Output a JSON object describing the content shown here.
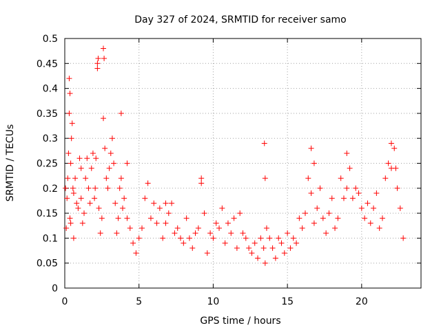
{
  "chart_data": {
    "type": "scatter",
    "title": "Day 327 of 2024, SRMTID for receiver samo",
    "xlabel": "GPS time / hours",
    "ylabel": "SRMTID / TECUs",
    "xlim": [
      0,
      24
    ],
    "ylim": [
      0,
      0.5
    ],
    "xticks": [
      0,
      5,
      10,
      15,
      20
    ],
    "xtick_labels": [
      "0",
      "5",
      "10",
      "15",
      "20"
    ],
    "yticks": [
      0,
      0.05,
      0.1,
      0.15,
      0.2,
      0.25,
      0.3,
      0.35,
      0.4,
      0.45,
      0.5
    ],
    "ytick_labels": [
      "0",
      "0.05",
      "0.1",
      "0.15",
      "0.2",
      "0.25",
      "0.3",
      "0.35",
      "0.4",
      "0.45",
      "0.5"
    ],
    "grid": true,
    "marker": "+",
    "color": "#ff0000",
    "series": [
      {
        "name": "SRMTID samo",
        "x": [
          0.05,
          0.1,
          0.15,
          0.2,
          0.25,
          0.3,
          0.35,
          0.4,
          0.45,
          0.5,
          0.55,
          0.6,
          0.7,
          0.8,
          0.9,
          1.0,
          1.1,
          1.2,
          1.3,
          1.4,
          1.5,
          1.6,
          1.7,
          1.8,
          1.9,
          2.0,
          2.05,
          2.1,
          2.2,
          2.3,
          2.4,
          2.5,
          2.6,
          2.7,
          2.8,
          2.9,
          3.0,
          3.1,
          3.2,
          3.3,
          3.4,
          3.5,
          3.6,
          3.7,
          3.8,
          3.9,
          4.0,
          4.2,
          4.4,
          4.6,
          4.8,
          5.0,
          5.2,
          5.4,
          5.6,
          5.8,
          6.0,
          6.2,
          6.4,
          6.6,
          6.8,
          7.0,
          7.2,
          7.4,
          7.6,
          7.8,
          8.0,
          8.2,
          8.4,
          8.6,
          8.8,
          9.0,
          9.2,
          9.4,
          9.6,
          9.8,
          10.0,
          10.2,
          10.4,
          10.6,
          10.8,
          11.0,
          11.2,
          11.4,
          11.6,
          11.8,
          12.0,
          12.2,
          12.4,
          12.6,
          12.8,
          13.0,
          13.2,
          13.4,
          13.5,
          13.6,
          13.8,
          14.0,
          14.2,
          14.4,
          14.6,
          14.8,
          15.0,
          15.2,
          15.4,
          15.6,
          15.8,
          16.0,
          16.2,
          16.4,
          16.6,
          16.8,
          17.0,
          17.2,
          17.4,
          17.6,
          17.8,
          18.0,
          18.2,
          18.4,
          18.6,
          18.8,
          19.0,
          19.2,
          19.4,
          19.6,
          19.8,
          20.0,
          20.2,
          20.4,
          20.6,
          20.8,
          21.0,
          21.2,
          21.4,
          21.6,
          21.8,
          22.0,
          22.2,
          22.4,
          22.6,
          22.8,
          0.3,
          0.35,
          2.6,
          2.65,
          2.2,
          2.25,
          3.8,
          1.1,
          0.4,
          0.6,
          13.45,
          13.5,
          16.6,
          16.8,
          22.0,
          22.3,
          9.2,
          4.2,
          6.8,
          19.0
        ],
        "y": [
          0.2,
          0.12,
          0.18,
          0.22,
          0.27,
          0.35,
          0.14,
          0.13,
          0.3,
          0.33,
          0.2,
          0.19,
          0.22,
          0.17,
          0.16,
          0.26,
          0.18,
          0.13,
          0.15,
          0.22,
          0.26,
          0.2,
          0.17,
          0.24,
          0.27,
          0.18,
          0.2,
          0.26,
          0.45,
          0.16,
          0.11,
          0.14,
          0.34,
          0.28,
          0.22,
          0.2,
          0.24,
          0.27,
          0.3,
          0.25,
          0.17,
          0.11,
          0.14,
          0.2,
          0.22,
          0.16,
          0.18,
          0.14,
          0.12,
          0.09,
          0.07,
          0.1,
          0.12,
          0.18,
          0.21,
          0.14,
          0.17,
          0.13,
          0.16,
          0.1,
          0.13,
          0.15,
          0.17,
          0.11,
          0.12,
          0.1,
          0.09,
          0.14,
          0.1,
          0.08,
          0.11,
          0.12,
          0.21,
          0.15,
          0.07,
          0.11,
          0.1,
          0.13,
          0.12,
          0.16,
          0.09,
          0.13,
          0.11,
          0.14,
          0.08,
          0.15,
          0.11,
          0.1,
          0.08,
          0.07,
          0.09,
          0.06,
          0.1,
          0.08,
          0.05,
          0.12,
          0.1,
          0.08,
          0.06,
          0.1,
          0.09,
          0.07,
          0.11,
          0.08,
          0.1,
          0.09,
          0.14,
          0.12,
          0.15,
          0.22,
          0.19,
          0.13,
          0.16,
          0.2,
          0.14,
          0.11,
          0.15,
          0.18,
          0.12,
          0.14,
          0.22,
          0.18,
          0.2,
          0.24,
          0.18,
          0.2,
          0.19,
          0.16,
          0.14,
          0.17,
          0.13,
          0.16,
          0.19,
          0.12,
          0.14,
          0.22,
          0.25,
          0.24,
          0.28,
          0.2,
          0.16,
          0.1,
          0.42,
          0.39,
          0.48,
          0.46,
          0.44,
          0.46,
          0.35,
          0.24,
          0.25,
          0.1,
          0.29,
          0.22,
          0.28,
          0.25,
          0.29,
          0.24,
          0.22,
          0.25,
          0.17,
          0.27
        ]
      }
    ]
  }
}
